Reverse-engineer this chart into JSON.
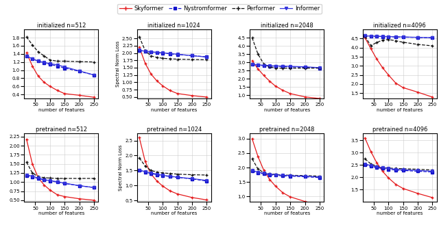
{
  "x": [
    20,
    40,
    60,
    80,
    100,
    125,
    150,
    200,
    250
  ],
  "titles_row1": [
    "initialized n=512",
    "initialized n=1024",
    "initialized n=2048",
    "initialized n=4096"
  ],
  "titles_row2": [
    "pretrained n=512",
    "pretrained n=1024",
    "pretrained n=2048",
    "pretrained n=4096"
  ],
  "xlabel": "number of features",
  "ylabel": "Spectral Norm Loss",
  "skyformer_color": "#e41a1c",
  "nystromformer_color": "#1111cc",
  "performer_color": "#111111",
  "informer_color": "#3333dd",
  "row1": [
    {
      "skyformer": [
        1.43,
        1.1,
        0.85,
        0.7,
        0.6,
        0.5,
        0.42,
        0.38,
        0.33
      ],
      "nystromformer": [
        1.35,
        1.28,
        1.22,
        1.18,
        1.14,
        1.1,
        1.05,
        0.97,
        0.88
      ],
      "performer": [
        1.82,
        1.62,
        1.45,
        1.35,
        1.25,
        1.22,
        1.22,
        1.21,
        1.2
      ],
      "informer": [
        1.35,
        1.28,
        1.22,
        1.19,
        1.16,
        1.13,
        1.08,
        0.98,
        0.88
      ],
      "ylim": [
        0.3,
        2.0
      ],
      "yticks": [
        0.4,
        0.6,
        0.8,
        1.0,
        1.2,
        1.4,
        1.6,
        1.8
      ]
    },
    {
      "skyformer": [
        2.2,
        1.65,
        1.28,
        1.05,
        0.88,
        0.72,
        0.62,
        0.55,
        0.5
      ],
      "nystromformer": [
        2.08,
        2.05,
        2.03,
        2.02,
        2.0,
        1.97,
        1.95,
        1.91,
        1.87
      ],
      "performer": [
        2.55,
        2.08,
        1.9,
        1.85,
        1.82,
        1.8,
        1.79,
        1.78,
        1.77
      ],
      "informer": [
        2.1,
        2.06,
        2.04,
        2.02,
        2.01,
        1.98,
        1.96,
        1.91,
        1.86
      ],
      "ylim": [
        0.45,
        2.8
      ],
      "yticks": [
        0.5,
        0.75,
        1.0,
        1.25,
        1.5,
        1.75,
        2.0,
        2.25,
        2.5
      ]
    },
    {
      "skyformer": [
        3.1,
        2.6,
        2.2,
        1.85,
        1.55,
        1.3,
        1.1,
        0.9,
        0.8
      ],
      "nystromformer": [
        2.88,
        2.83,
        2.8,
        2.78,
        2.76,
        2.75,
        2.73,
        2.7,
        2.65
      ],
      "performer": [
        4.5,
        3.5,
        2.9,
        2.72,
        2.65,
        2.65,
        2.65,
        2.65,
        2.65
      ],
      "informer": [
        2.88,
        2.85,
        2.82,
        2.8,
        2.78,
        2.78,
        2.76,
        2.73,
        2.68
      ],
      "ylim": [
        0.8,
        5.0
      ],
      "yticks": [
        1.0,
        1.5,
        2.0,
        2.5,
        3.0,
        3.5,
        4.0,
        4.5
      ]
    },
    {
      "skyformer": [
        4.55,
        3.95,
        3.38,
        2.9,
        2.5,
        2.05,
        1.8,
        1.55,
        1.28
      ],
      "nystromformer": [
        4.65,
        4.63,
        4.62,
        4.61,
        4.6,
        4.59,
        4.58,
        4.56,
        4.55
      ],
      "performer": [
        4.62,
        4.12,
        4.28,
        4.42,
        4.45,
        4.38,
        4.3,
        4.18,
        4.1
      ],
      "informer": [
        4.65,
        4.64,
        4.63,
        4.62,
        4.61,
        4.6,
        4.59,
        4.57,
        4.55
      ],
      "ylim": [
        1.2,
        5.0
      ],
      "yticks": [
        1.5,
        2.0,
        2.5,
        3.0,
        3.5,
        4.0,
        4.5
      ]
    }
  ],
  "row2": [
    {
      "skyformer": [
        2.18,
        1.5,
        1.12,
        0.92,
        0.78,
        0.65,
        0.6,
        0.54,
        0.5
      ],
      "nystromformer": [
        1.18,
        1.14,
        1.1,
        1.06,
        1.03,
        1.0,
        0.96,
        0.9,
        0.85
      ],
      "performer": [
        1.55,
        1.25,
        1.15,
        1.12,
        1.11,
        1.1,
        1.1,
        1.1,
        1.1
      ],
      "informer": [
        1.2,
        1.16,
        1.11,
        1.07,
        1.04,
        1.01,
        0.97,
        0.9,
        0.85
      ],
      "ylim": [
        0.45,
        2.35
      ],
      "yticks": [
        0.5,
        0.75,
        1.0,
        1.25,
        1.5,
        1.75,
        2.0,
        2.25
      ]
    },
    {
      "skyformer": [
        2.6,
        1.8,
        1.38,
        1.15,
        0.98,
        0.82,
        0.72,
        0.6,
        0.52
      ],
      "nystromformer": [
        1.5,
        1.45,
        1.4,
        1.36,
        1.33,
        1.3,
        1.27,
        1.22,
        1.15
      ],
      "performer": [
        1.92,
        1.65,
        1.5,
        1.45,
        1.42,
        1.4,
        1.38,
        1.36,
        1.35
      ],
      "informer": [
        1.52,
        1.46,
        1.42,
        1.38,
        1.34,
        1.31,
        1.28,
        1.23,
        1.17
      ],
      "ylim": [
        0.45,
        2.75
      ],
      "yticks": [
        0.5,
        1.0,
        1.5,
        2.0,
        2.5
      ]
    },
    {
      "skyformer": [
        3.0,
        2.38,
        1.9,
        1.58,
        1.35,
        1.12,
        0.98,
        0.82,
        0.7
      ],
      "nystromformer": [
        1.88,
        1.82,
        1.78,
        1.75,
        1.73,
        1.71,
        1.7,
        1.68,
        1.65
      ],
      "performer": [
        2.3,
        1.95,
        1.82,
        1.78,
        1.76,
        1.74,
        1.73,
        1.72,
        1.7
      ],
      "informer": [
        1.9,
        1.84,
        1.8,
        1.77,
        1.75,
        1.73,
        1.72,
        1.7,
        1.67
      ],
      "ylim": [
        0.8,
        3.2
      ],
      "yticks": [
        1.0,
        1.5,
        2.0,
        2.5,
        3.0
      ]
    },
    {
      "skyformer": [
        3.6,
        3.05,
        2.6,
        2.25,
        1.98,
        1.72,
        1.55,
        1.35,
        1.18
      ],
      "nystromformer": [
        2.52,
        2.45,
        2.4,
        2.36,
        2.33,
        2.3,
        2.28,
        2.25,
        2.22
      ],
      "performer": [
        2.75,
        2.55,
        2.45,
        2.4,
        2.38,
        2.36,
        2.35,
        2.33,
        2.3
      ],
      "informer": [
        2.55,
        2.48,
        2.43,
        2.39,
        2.36,
        2.33,
        2.31,
        2.28,
        2.25
      ],
      "ylim": [
        1.0,
        3.8
      ],
      "yticks": [
        1.5,
        2.0,
        2.5,
        3.0,
        3.5
      ]
    }
  ]
}
